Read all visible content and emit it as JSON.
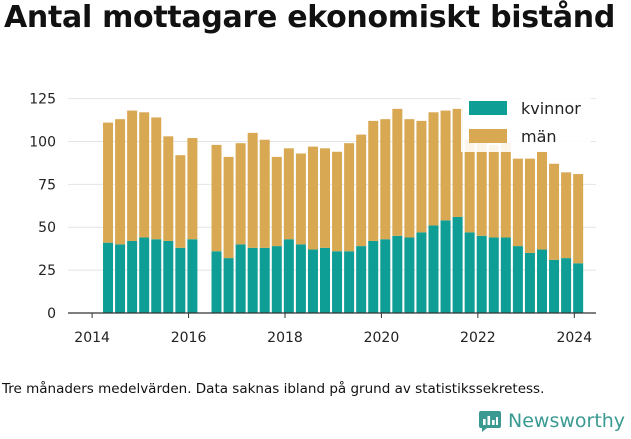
{
  "title": "Antal mottagare ekonomiskt bistånd",
  "footnote": "Tre månaders medelvärden. Data saknas ibland på grund av statistikssekretess.",
  "brand": "Newsworthy",
  "colors": {
    "kvinnor": "#0e9e95",
    "man": "#d9a853",
    "grid": "#e4e4e4",
    "axis": "#333333",
    "brand": "#3a9a92"
  },
  "chart_data": {
    "type": "bar",
    "stacked": true,
    "x_tick_labels": [
      "2014",
      "2016",
      "2018",
      "2020",
      "2022",
      "2024"
    ],
    "x_ticks": [
      2014,
      2016,
      2018,
      2020,
      2022,
      2024
    ],
    "xlim": [
      2013.5,
      2024.45
    ],
    "y_tick_labels": [
      "0",
      "25",
      "50",
      "75",
      "100",
      "125"
    ],
    "y_ticks": [
      0,
      25,
      50,
      75,
      100,
      125
    ],
    "ylim": [
      0,
      130
    ],
    "grid": true,
    "legend_position": "top-right",
    "x": [
      2014.33,
      2014.58,
      2014.83,
      2015.08,
      2015.33,
      2015.58,
      2015.83,
      2016.08,
      2016.58,
      2016.83,
      2017.08,
      2017.33,
      2017.58,
      2017.83,
      2018.08,
      2018.33,
      2018.58,
      2018.83,
      2019.08,
      2019.33,
      2019.58,
      2019.83,
      2020.08,
      2020.33,
      2020.58,
      2020.83,
      2021.08,
      2021.33,
      2021.58,
      2021.83,
      2022.08,
      2022.33,
      2022.58,
      2022.83,
      2023.08,
      2023.33,
      2023.58,
      2023.83,
      2024.08
    ],
    "series": [
      {
        "name": "kvinnor",
        "color": "#0e9e95",
        "values": [
          41,
          40,
          42,
          44,
          43,
          42,
          38,
          43,
          36,
          32,
          40,
          38,
          38,
          39,
          43,
          40,
          37,
          38,
          36,
          36,
          39,
          42,
          43,
          45,
          44,
          47,
          51,
          54,
          56,
          47,
          45,
          44,
          44,
          39,
          35,
          37,
          31,
          32,
          29
        ]
      },
      {
        "name": "män",
        "color": "#d9a853",
        "values": [
          70,
          73,
          76,
          73,
          71,
          61,
          54,
          59,
          62,
          59,
          59,
          67,
          63,
          52,
          53,
          53,
          60,
          58,
          58,
          63,
          65,
          70,
          70,
          74,
          69,
          65,
          66,
          64,
          63,
          54,
          54,
          54,
          55,
          51,
          55,
          57,
          56,
          50,
          52
        ]
      }
    ]
  }
}
